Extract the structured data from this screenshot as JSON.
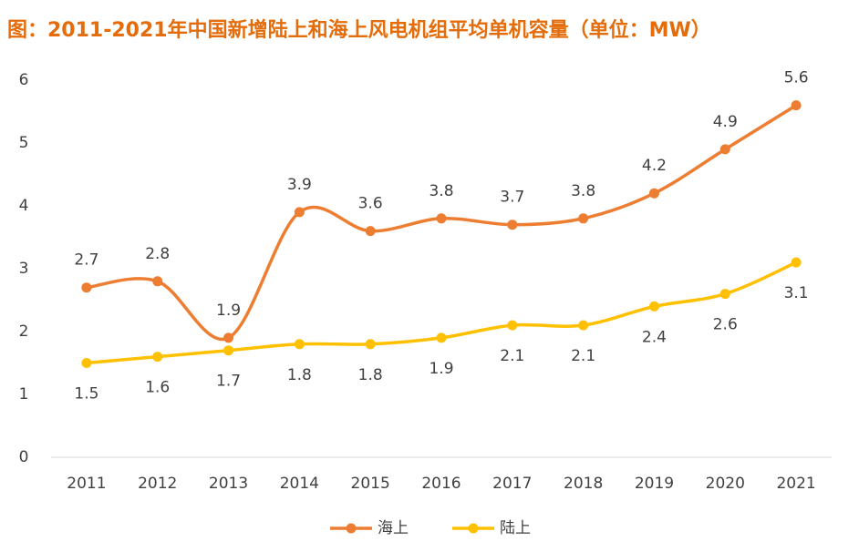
{
  "chart_data": {
    "type": "line",
    "title": "图：2011-2021年中国新增陆上和海上风电机组平均单机容量（单位：MW）",
    "categories": [
      "2011",
      "2012",
      "2013",
      "2014",
      "2015",
      "2016",
      "2017",
      "2018",
      "2019",
      "2020",
      "2021"
    ],
    "series": [
      {
        "name": "海上",
        "color": "#ED7D31",
        "values": [
          2.7,
          2.8,
          1.9,
          3.9,
          3.6,
          3.8,
          3.7,
          3.8,
          4.2,
          4.9,
          5.6
        ]
      },
      {
        "name": "陆上",
        "color": "#FFC000",
        "values": [
          1.5,
          1.6,
          1.7,
          1.8,
          1.8,
          1.9,
          2.1,
          2.1,
          2.4,
          2.6,
          3.1
        ]
      }
    ],
    "ylim": [
      0,
      6
    ],
    "yticks": [
      0,
      1,
      2,
      3,
      4,
      5,
      6
    ],
    "grid": false,
    "smooth": true,
    "legend": "bottom"
  }
}
